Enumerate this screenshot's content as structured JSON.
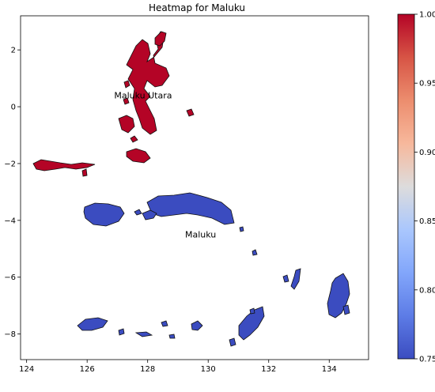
{
  "title": "Heatmap for Maluku",
  "colors": {
    "high": "#b40426",
    "low": "#3b4cc0"
  },
  "chart_data": {
    "type": "heatmap",
    "title": "Heatmap for Maluku",
    "xlim": [
      123.8,
      135.3
    ],
    "ylim": [
      -8.9,
      3.2
    ],
    "x_ticks": [
      124,
      126,
      128,
      130,
      132,
      134
    ],
    "y_ticks": [
      2,
      0,
      -2,
      -4,
      -6,
      -8
    ],
    "colorbar": {
      "colormap": "coolwarm",
      "range": [
        0.75,
        1.0
      ],
      "ticks": [
        1.0,
        0.95,
        0.9,
        0.85,
        0.8,
        0.75
      ]
    },
    "regions": [
      {
        "name": "Maluku Utara",
        "value": 1.0,
        "label_lon": 127.85,
        "label_lat": 0.3
      },
      {
        "name": "Maluku",
        "value": 0.75,
        "label_lon": 129.75,
        "label_lat": -4.6
      }
    ]
  }
}
